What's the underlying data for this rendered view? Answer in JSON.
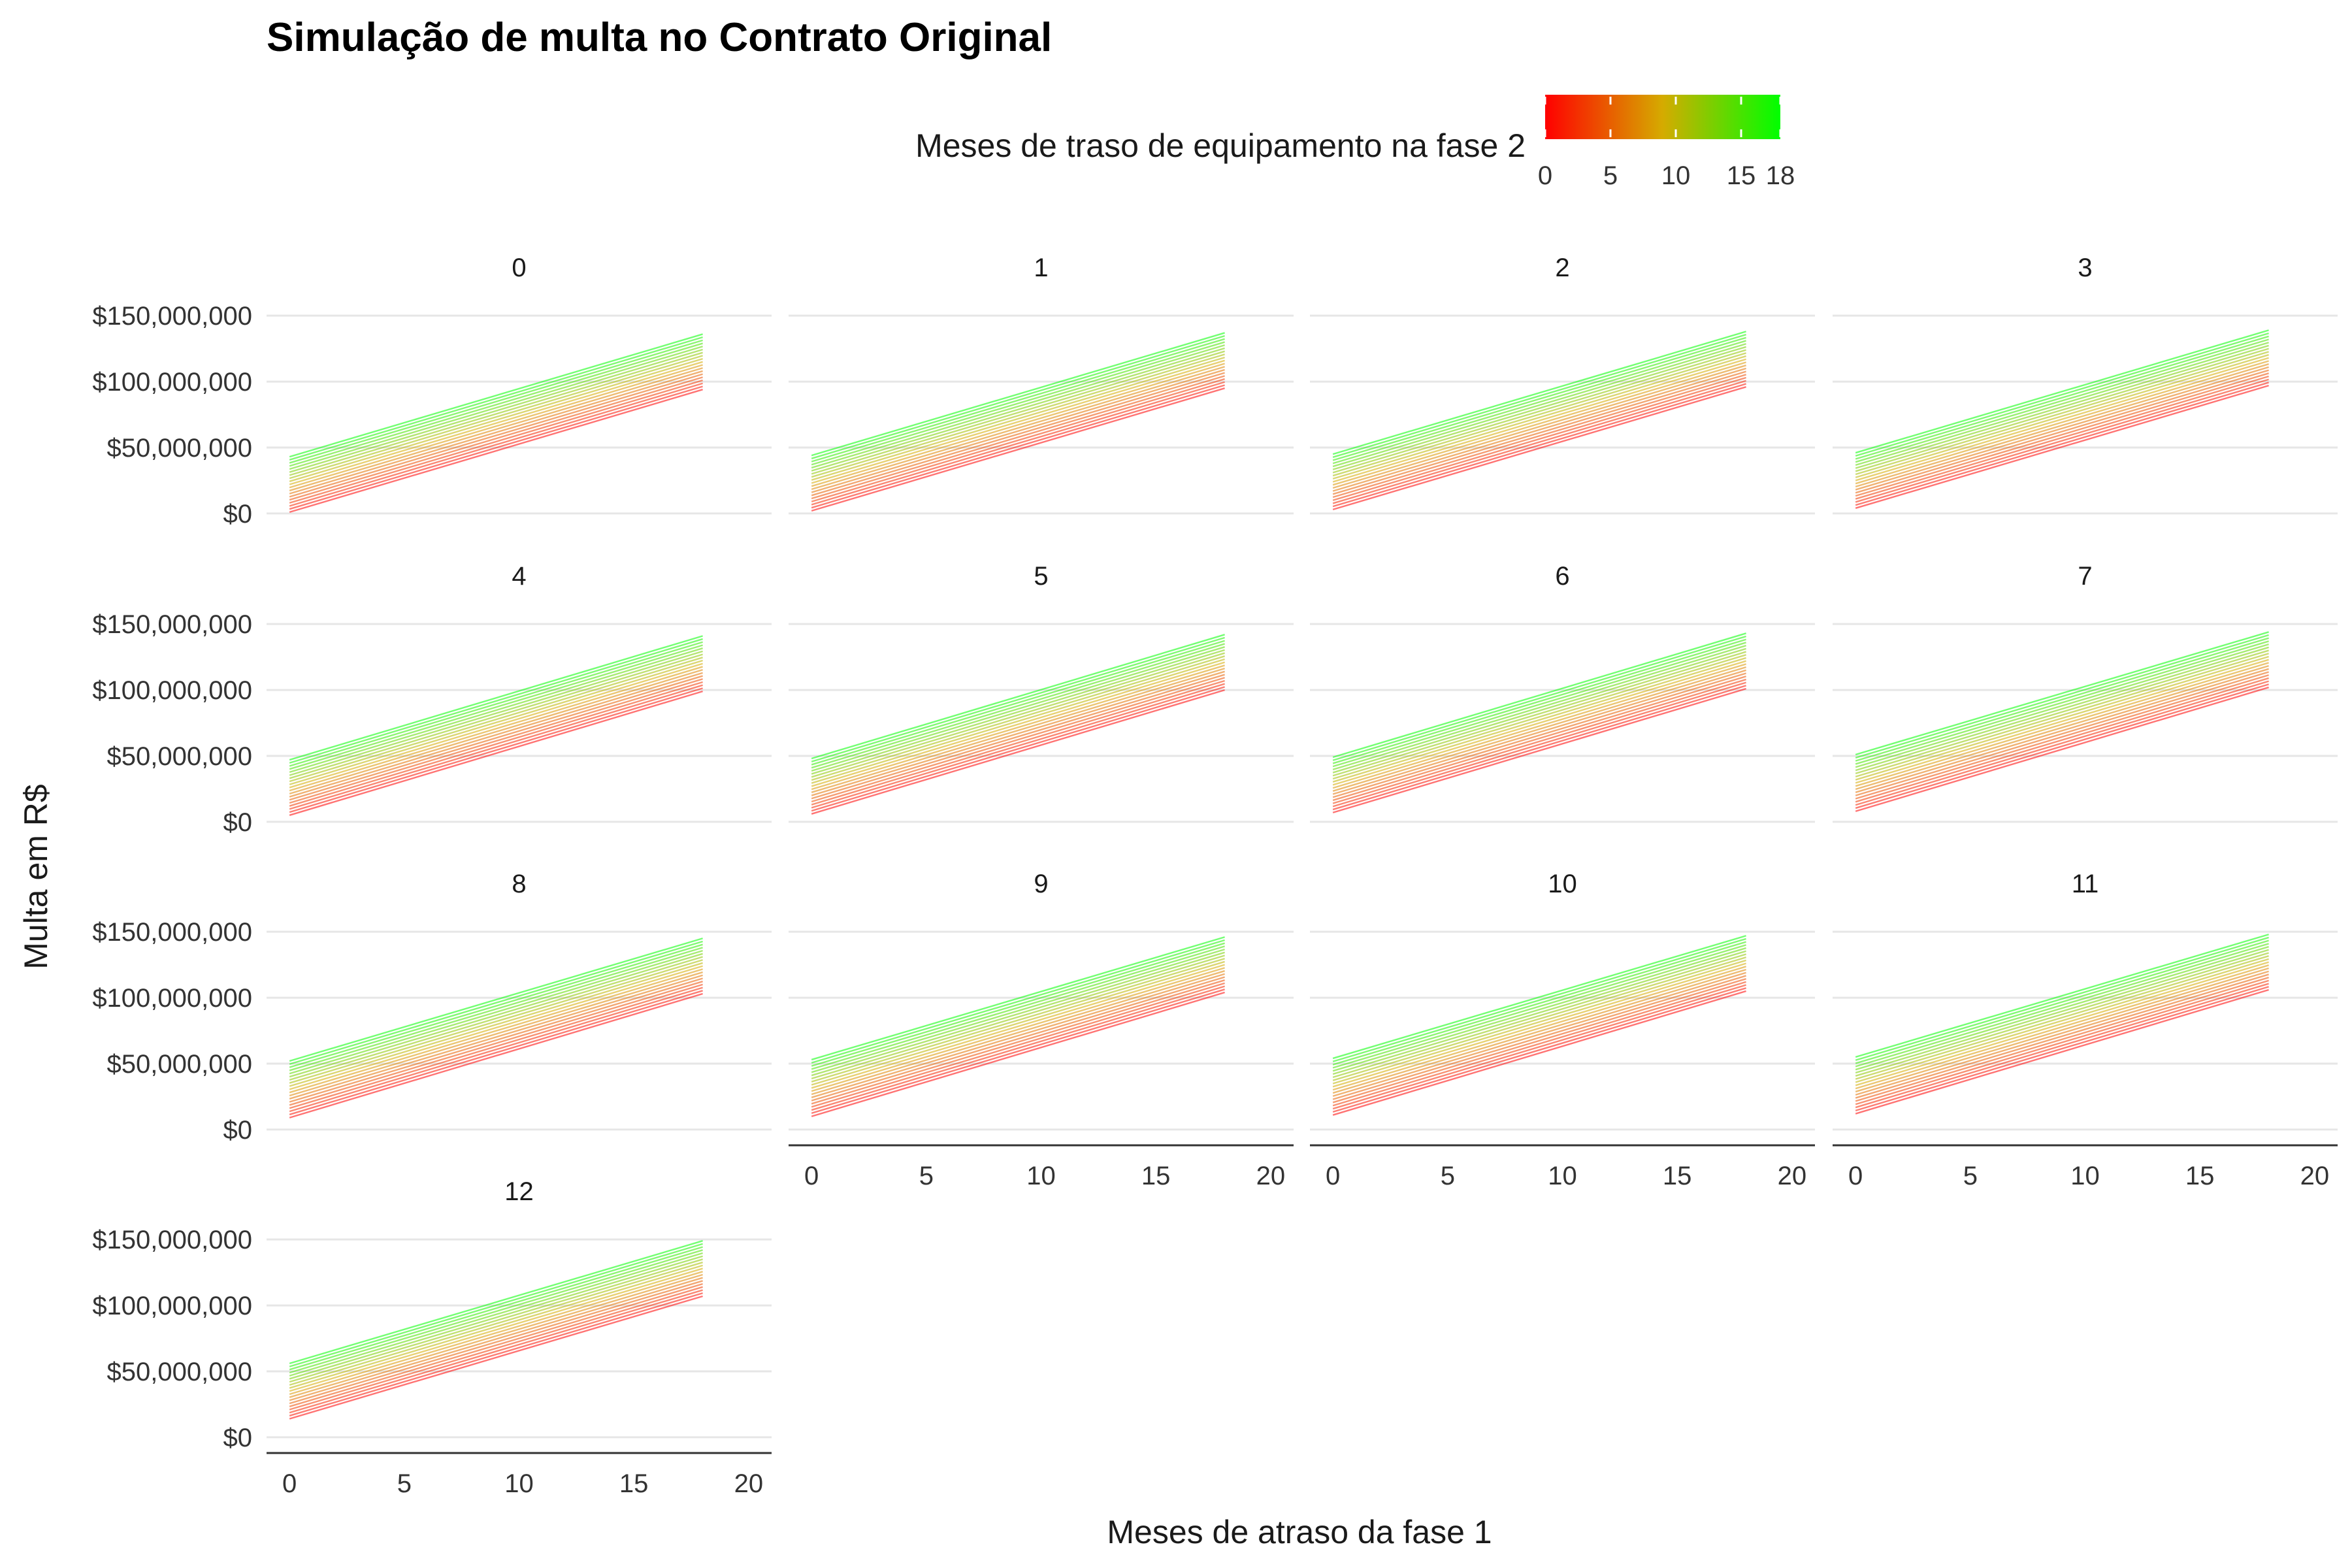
{
  "chart_data": {
    "type": "line",
    "title": "Simulação de multa no Contrato Original",
    "xlabel": "Meses de atraso da fase 1",
    "ylabel": "Multa em R$",
    "legend": {
      "title": "Meses de traso de equipamento na fase 2",
      "position": "top",
      "type": "colorbar",
      "range": [
        0,
        18
      ],
      "ticks": [
        0,
        5,
        10,
        15,
        18
      ],
      "low_color": "#ff0000",
      "high_color": "#00ff00"
    },
    "x_ticks": [
      0,
      5,
      10,
      15,
      20
    ],
    "xlim": [
      -1,
      21
    ],
    "y_ticks": [
      0,
      50000000,
      100000000,
      150000000
    ],
    "y_tick_labels": [
      "$0",
      "$50,000,000",
      "$100,000,000",
      "$150,000,000"
    ],
    "ylim": [
      -5000000,
      160000000
    ],
    "grid": true,
    "panels_facet_by": "facet",
    "line_x_range": [
      0,
      18
    ],
    "fase2_values": [
      0,
      1,
      2,
      3,
      4,
      5,
      6,
      7,
      8,
      9,
      10,
      11,
      12,
      13,
      14,
      15,
      16,
      17,
      18
    ],
    "panels": [
      {
        "label": "0",
        "y_start_at_fase2_0": 1000000,
        "y_start_at_fase2_18": 43000000,
        "y_end_at_fase2_0": 94000000,
        "y_end_at_fase2_18": 136000000
      },
      {
        "label": "1",
        "y_start_at_fase2_0": 2000000,
        "y_start_at_fase2_18": 44000000,
        "y_end_at_fase2_0": 95000000,
        "y_end_at_fase2_18": 137000000
      },
      {
        "label": "2",
        "y_start_at_fase2_0": 3000000,
        "y_start_at_fase2_18": 45000000,
        "y_end_at_fase2_0": 96000000,
        "y_end_at_fase2_18": 138000000
      },
      {
        "label": "3",
        "y_start_at_fase2_0": 4000000,
        "y_start_at_fase2_18": 46000000,
        "y_end_at_fase2_0": 97000000,
        "y_end_at_fase2_18": 139000000
      },
      {
        "label": "4",
        "y_start_at_fase2_0": 5000000,
        "y_start_at_fase2_18": 47000000,
        "y_end_at_fase2_0": 99000000,
        "y_end_at_fase2_18": 141000000
      },
      {
        "label": "5",
        "y_start_at_fase2_0": 6000000,
        "y_start_at_fase2_18": 48000000,
        "y_end_at_fase2_0": 100000000,
        "y_end_at_fase2_18": 142000000
      },
      {
        "label": "6",
        "y_start_at_fase2_0": 7000000,
        "y_start_at_fase2_18": 49000000,
        "y_end_at_fase2_0": 101000000,
        "y_end_at_fase2_18": 143000000
      },
      {
        "label": "7",
        "y_start_at_fase2_0": 8000000,
        "y_start_at_fase2_18": 51000000,
        "y_end_at_fase2_0": 102000000,
        "y_end_at_fase2_18": 144000000
      },
      {
        "label": "8",
        "y_start_at_fase2_0": 9000000,
        "y_start_at_fase2_18": 52000000,
        "y_end_at_fase2_0": 103000000,
        "y_end_at_fase2_18": 145000000
      },
      {
        "label": "9",
        "y_start_at_fase2_0": 10000000,
        "y_start_at_fase2_18": 53000000,
        "y_end_at_fase2_0": 104000000,
        "y_end_at_fase2_18": 146000000
      },
      {
        "label": "10",
        "y_start_at_fase2_0": 11000000,
        "y_start_at_fase2_18": 54000000,
        "y_end_at_fase2_0": 105000000,
        "y_end_at_fase2_18": 147000000
      },
      {
        "label": "11",
        "y_start_at_fase2_0": 12000000,
        "y_start_at_fase2_18": 55000000,
        "y_end_at_fase2_0": 106000000,
        "y_end_at_fase2_18": 148000000
      },
      {
        "label": "12",
        "y_start_at_fase2_0": 14000000,
        "y_start_at_fase2_18": 56000000,
        "y_end_at_fase2_0": 107000000,
        "y_end_at_fase2_18": 149000000
      }
    ]
  }
}
